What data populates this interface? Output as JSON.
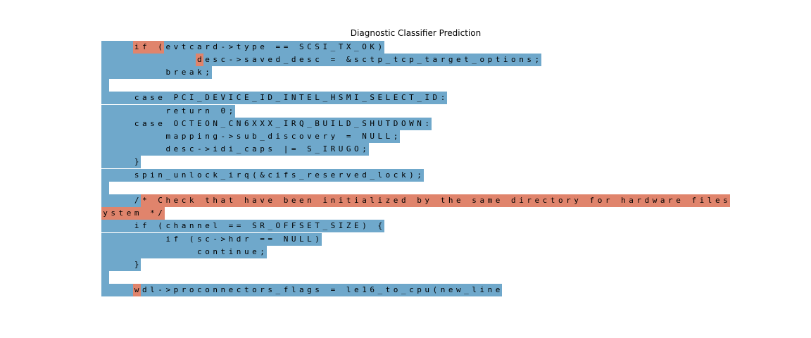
{
  "title": "Diagnostic Classifier Prediction",
  "colors": {
    "blue": "#6fa8cb",
    "orange": "#e0846c"
  },
  "lines": [
    {
      "text": "    if (evtcard->type == SCSI_TX_OK)",
      "orange": [
        [
          4,
          7
        ]
      ]
    },
    {
      "text": "            desc->saved_desc = &sctp_tcp_target_options;",
      "orange": [
        [
          12,
          12
        ]
      ]
    },
    {
      "text": "        break;",
      "orange": []
    },
    {
      "text": "",
      "orange": []
    },
    {
      "text": "    case PCI_DEVICE_ID_INTEL_HSMI_SELECT_ID:",
      "orange": []
    },
    {
      "text": "        return 0;",
      "orange": []
    },
    {
      "text": "    case OCTEON_CN6XXX_IRQ_BUILD_SHUTDOWN:",
      "orange": []
    },
    {
      "text": "        mapping->sub_discovery = NULL;",
      "orange": []
    },
    {
      "text": "        desc->idi_caps |= S_IRUGO;",
      "orange": []
    },
    {
      "text": "    }",
      "orange": []
    },
    {
      "text": "    spin_unlock_irq(&cifs_reserved_lock);",
      "orange": []
    },
    {
      "text": "",
      "orange": []
    },
    {
      "text": "    /* Check that have been initialized by the same directory for hardware files",
      "orange": [
        [
          5,
          79
        ]
      ]
    },
    {
      "text": "ystem */",
      "orange": [
        [
          0,
          7
        ]
      ]
    },
    {
      "text": "    if (channel == SR_OFFSET_SIZE) {",
      "orange": []
    },
    {
      "text": "        if (sc->hdr == NULL)",
      "orange": []
    },
    {
      "text": "            continue;",
      "orange": []
    },
    {
      "text": "    }",
      "orange": []
    },
    {
      "text": "",
      "orange": []
    },
    {
      "text": "    wdl->proconnectors_flags = le16_to_cpu(new_line",
      "orange": [
        [
          4,
          4
        ]
      ]
    }
  ]
}
